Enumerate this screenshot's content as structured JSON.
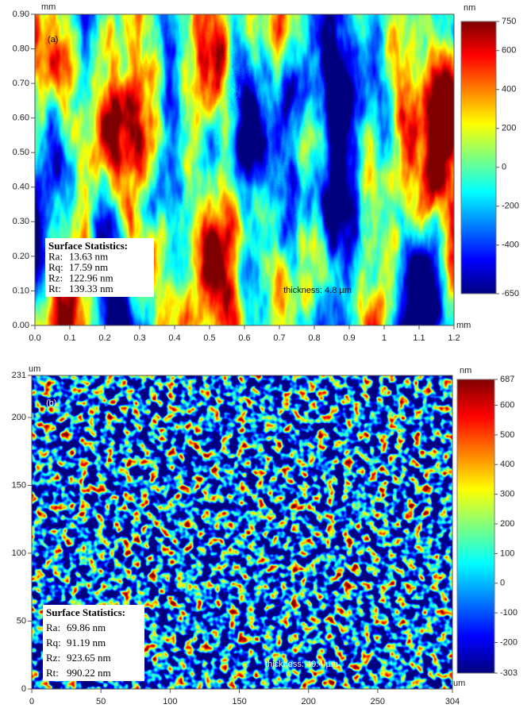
{
  "chart_data": [
    {
      "type": "heatmap",
      "panel_label": "(a)",
      "annotation": "thickness: 4.8 µm",
      "colormap": "jet",
      "x_unit": "mm",
      "y_unit": "mm",
      "color_unit": "nm",
      "xlim": [
        0,
        1.2
      ],
      "xticks": [
        {
          "value": 0,
          "label": "0.0"
        },
        0.1,
        0.2,
        0.3,
        0.4,
        0.5,
        0.6,
        0.7,
        0.8,
        0.9,
        1,
        1.1,
        1.2
      ],
      "ylim": [
        0,
        0.9
      ],
      "yticks": [
        {
          "value": 0,
          "label": "0.00"
        },
        {
          "value": 0.1,
          "label": "0.10"
        },
        {
          "value": 0.2,
          "label": "0.20"
        },
        {
          "value": 0.3,
          "label": "0.30"
        },
        {
          "value": 0.4,
          "label": "0.40"
        },
        {
          "value": 0.5,
          "label": "0.50"
        },
        {
          "value": 0.6,
          "label": "0.60"
        },
        {
          "value": 0.7,
          "label": "0.70"
        },
        {
          "value": 0.8,
          "label": "0.80"
        },
        {
          "value": 0.9,
          "label": "0.90"
        }
      ],
      "clim": [
        -650,
        750
      ],
      "cticks": [
        -650,
        -400,
        -200,
        0,
        200,
        400,
        600,
        750
      ],
      "stats": {
        "title": "Surface Statistics:",
        "rows": [
          [
            "Ra:",
            "13.63 nm"
          ],
          [
            "Rq:",
            "17.59 nm"
          ],
          [
            "Rz:",
            "122.96 nm"
          ],
          [
            "Rt:",
            "139.33 nm"
          ]
        ]
      }
    },
    {
      "type": "heatmap",
      "panel_label": "(b)",
      "annotation": "thickness: 49.4 µm",
      "colormap": "jet",
      "x_unit": "um",
      "y_unit": "um",
      "color_unit": "nm",
      "xlim": [
        0,
        304
      ],
      "xticks": [
        0,
        50,
        100,
        150,
        200,
        250,
        304
      ],
      "ylim": [
        0,
        231
      ],
      "yticks": [
        0,
        50,
        100,
        150,
        200,
        231
      ],
      "clim": [
        -303,
        687
      ],
      "cticks": [
        -303,
        -200,
        -100,
        0,
        100,
        200,
        300,
        400,
        500,
        600,
        687
      ],
      "stats": {
        "title": "Surface Statistics:",
        "rows": [
          [
            "Ra:",
            "69.86 nm"
          ],
          [
            "Rq:",
            "91.19 nm"
          ],
          [
            "Rz:",
            "923.65 nm"
          ],
          [
            "Rt:",
            "990.22 nm"
          ]
        ]
      }
    }
  ]
}
